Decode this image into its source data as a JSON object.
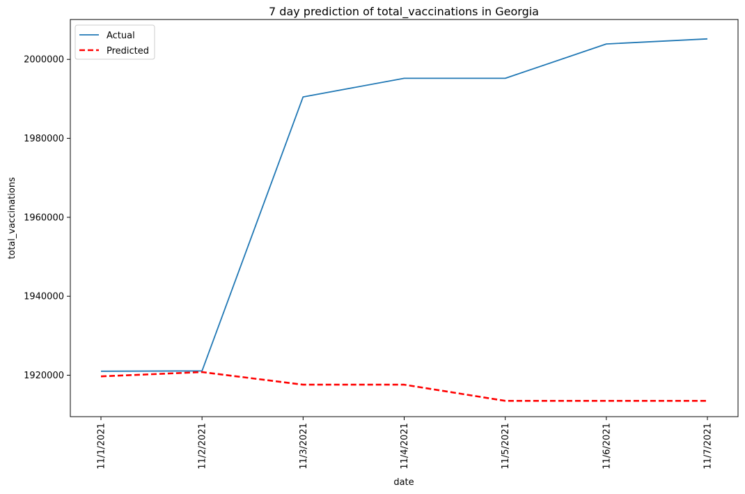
{
  "chart_data": {
    "type": "line",
    "title": "7 day prediction of total_vaccinations in Georgia",
    "xlabel": "date",
    "ylabel": "total_vaccinations",
    "categories": [
      "11/1/2021",
      "11/2/2021",
      "11/3/2021",
      "11/4/2021",
      "11/5/2021",
      "11/6/2021",
      "11/7/2021"
    ],
    "ylim": [
      1909500,
      2010100
    ],
    "yticks": [
      {
        "value": 1920000,
        "label": "1920000"
      },
      {
        "value": 1940000,
        "label": "1940000"
      },
      {
        "value": 1960000,
        "label": "1960000"
      },
      {
        "value": 1980000,
        "label": "1980000"
      },
      {
        "value": 2000000,
        "label": "2000000"
      }
    ],
    "grid": false,
    "legend_position": "top-left",
    "series": [
      {
        "name": "Actual",
        "style": "solid",
        "color": "#1f77b4",
        "values": [
          1921000,
          1921100,
          1990500,
          1995200,
          1995200,
          2003900,
          2005200
        ]
      },
      {
        "name": "Predicted",
        "style": "dashed",
        "color": "#ff0000",
        "values": [
          1919700,
          1920800,
          1917600,
          1917600,
          1913500,
          1913500,
          1913500
        ]
      }
    ]
  }
}
